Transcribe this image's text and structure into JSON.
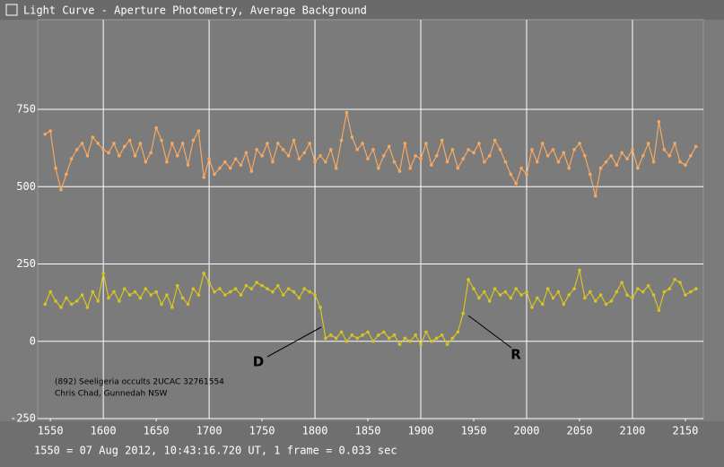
{
  "chart_data": {
    "type": "line",
    "title": "Light Curve - Aperture Photometry, Average Background",
    "footer": "1550 = 07 Aug 2012, 10:43:16.720 UT, 1 frame = 0.033 sec",
    "note": [
      "(892) Seeligeria occults 2UCAC 32761554",
      "Chris Chad, Gunnedah NSW"
    ],
    "annotations": [
      "D",
      "R"
    ],
    "x": [
      1545,
      1550,
      1555,
      1560,
      1565,
      1570,
      1575,
      1580,
      1585,
      1590,
      1595,
      1600,
      1605,
      1610,
      1615,
      1620,
      1625,
      1630,
      1635,
      1640,
      1645,
      1650,
      1655,
      1660,
      1665,
      1670,
      1675,
      1680,
      1685,
      1690,
      1695,
      1700,
      1705,
      1710,
      1715,
      1720,
      1725,
      1730,
      1735,
      1740,
      1745,
      1750,
      1755,
      1760,
      1765,
      1770,
      1775,
      1780,
      1785,
      1790,
      1795,
      1800,
      1805,
      1810,
      1815,
      1820,
      1825,
      1830,
      1835,
      1840,
      1845,
      1850,
      1855,
      1860,
      1865,
      1870,
      1875,
      1880,
      1885,
      1890,
      1895,
      1900,
      1905,
      1910,
      1915,
      1920,
      1925,
      1930,
      1935,
      1940,
      1945,
      1950,
      1955,
      1960,
      1965,
      1970,
      1975,
      1980,
      1985,
      1990,
      1995,
      2000,
      2005,
      2010,
      2015,
      2020,
      2025,
      2030,
      2035,
      2040,
      2045,
      2050,
      2055,
      2060,
      2065,
      2070,
      2075,
      2080,
      2085,
      2090,
      2095,
      2100,
      2105,
      2110,
      2115,
      2120,
      2125,
      2130,
      2135,
      2140,
      2145,
      2150,
      2155,
      2160
    ],
    "series": [
      {
        "color": "#f6a862",
        "values": [
          670,
          680,
          560,
          490,
          540,
          590,
          620,
          640,
          600,
          660,
          640,
          620,
          610,
          640,
          600,
          630,
          650,
          600,
          640,
          580,
          610,
          690,
          650,
          580,
          640,
          600,
          640,
          570,
          650,
          680,
          530,
          590,
          540,
          560,
          580,
          560,
          590,
          570,
          610,
          550,
          620,
          600,
          640,
          580,
          640,
          620,
          600,
          650,
          590,
          610,
          640,
          580,
          600,
          580,
          620,
          560,
          650,
          740,
          660,
          620,
          640,
          590,
          620,
          560,
          600,
          630,
          580,
          550,
          640,
          560,
          600,
          590,
          640,
          570,
          600,
          650,
          580,
          620,
          560,
          590,
          620,
          610,
          640,
          580,
          600,
          650,
          620,
          580,
          540,
          510,
          560,
          540,
          620,
          580,
          640,
          600,
          620,
          580,
          610,
          560,
          620,
          640,
          600,
          540,
          470,
          560,
          580,
          600,
          570,
          610,
          590,
          620,
          560,
          600,
          640,
          580,
          710,
          620,
          600,
          640,
          580,
          570,
          600,
          630
        ]
      },
      {
        "color": "#d8c421",
        "values": [
          120,
          160,
          130,
          110,
          140,
          120,
          130,
          150,
          110,
          160,
          130,
          220,
          140,
          160,
          130,
          170,
          150,
          160,
          140,
          170,
          150,
          160,
          120,
          150,
          110,
          180,
          140,
          120,
          170,
          150,
          220,
          190,
          160,
          170,
          150,
          160,
          170,
          150,
          180,
          170,
          190,
          180,
          170,
          160,
          180,
          150,
          170,
          160,
          140,
          170,
          160,
          150,
          110,
          10,
          20,
          10,
          30,
          0,
          20,
          10,
          20,
          30,
          0,
          20,
          30,
          10,
          20,
          -10,
          10,
          0,
          20,
          -10,
          30,
          0,
          10,
          20,
          -10,
          10,
          30,
          90,
          200,
          170,
          140,
          160,
          130,
          170,
          150,
          160,
          140,
          170,
          150,
          160,
          110,
          140,
          120,
          170,
          140,
          160,
          120,
          150,
          170,
          230,
          140,
          160,
          130,
          150,
          120,
          130,
          160,
          190,
          150,
          140,
          170,
          160,
          180,
          150,
          100,
          160,
          170,
          200,
          190,
          150,
          160,
          170
        ]
      }
    ],
    "xlim": [
      1538,
      2167
    ],
    "ylim": [
      -250,
      1040
    ],
    "xticks": [
      1550,
      1600,
      1650,
      1700,
      1750,
      1800,
      1850,
      1900,
      1950,
      2000,
      2050,
      2100,
      2150
    ],
    "yticks": [
      -250,
      0,
      250,
      500,
      750
    ],
    "grid": true
  }
}
